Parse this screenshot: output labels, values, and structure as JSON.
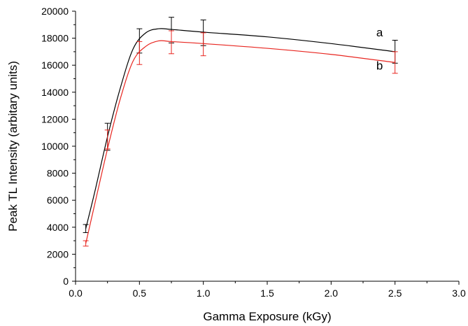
{
  "chart_data": {
    "type": "line",
    "title": "",
    "xlabel": "Gamma Exposure (kGy)",
    "ylabel": "Peak TL Intensity (arbitary units)",
    "xlim": [
      0.0,
      3.0
    ],
    "ylim": [
      0,
      20000
    ],
    "x_ticks": [
      "0.0",
      "0.5",
      "1.0",
      "1.5",
      "2.0",
      "2.5",
      "3.0"
    ],
    "y_ticks": [
      "0",
      "2000",
      "4000",
      "6000",
      "8000",
      "10000",
      "12000",
      "14000",
      "16000",
      "18000",
      "20000"
    ],
    "grid": false,
    "legend": "none",
    "series": [
      {
        "name": "a",
        "color": "#000000",
        "points": [
          {
            "x": 0.08,
            "y": 3900,
            "err": 300
          },
          {
            "x": 0.25,
            "y": 10700,
            "err": 1000
          },
          {
            "x": 0.5,
            "y": 17800,
            "err": 900
          },
          {
            "x": 0.75,
            "y": 18600,
            "err": 950
          },
          {
            "x": 1.0,
            "y": 18400,
            "err": 950
          },
          {
            "x": 2.5,
            "y": 17000,
            "err": 850
          }
        ],
        "curve": [
          {
            "x": 0.08,
            "y": 3900
          },
          {
            "x": 0.15,
            "y": 6600
          },
          {
            "x": 0.25,
            "y": 10700
          },
          {
            "x": 0.35,
            "y": 14300
          },
          {
            "x": 0.45,
            "y": 17200
          },
          {
            "x": 0.55,
            "y": 18400
          },
          {
            "x": 0.65,
            "y": 18700
          },
          {
            "x": 0.75,
            "y": 18650
          },
          {
            "x": 1.0,
            "y": 18450
          },
          {
            "x": 1.5,
            "y": 18100
          },
          {
            "x": 2.0,
            "y": 17600
          },
          {
            "x": 2.5,
            "y": 17000
          }
        ]
      },
      {
        "name": "b",
        "color": "#e8251f",
        "points": [
          {
            "x": 0.08,
            "y": 2800,
            "err": 200
          },
          {
            "x": 0.25,
            "y": 10500,
            "err": 700
          },
          {
            "x": 0.5,
            "y": 16900,
            "err": 850
          },
          {
            "x": 0.75,
            "y": 17700,
            "err": 850
          },
          {
            "x": 1.0,
            "y": 17550,
            "err": 850
          },
          {
            "x": 2.5,
            "y": 16200,
            "err": 800
          }
        ],
        "curve": [
          {
            "x": 0.08,
            "y": 2800
          },
          {
            "x": 0.15,
            "y": 5700
          },
          {
            "x": 0.25,
            "y": 9800
          },
          {
            "x": 0.35,
            "y": 13500
          },
          {
            "x": 0.45,
            "y": 16300
          },
          {
            "x": 0.55,
            "y": 17400
          },
          {
            "x": 0.65,
            "y": 17800
          },
          {
            "x": 0.75,
            "y": 17750
          },
          {
            "x": 1.0,
            "y": 17600
          },
          {
            "x": 1.5,
            "y": 17250
          },
          {
            "x": 2.0,
            "y": 16800
          },
          {
            "x": 2.5,
            "y": 16200
          }
        ]
      }
    ]
  }
}
